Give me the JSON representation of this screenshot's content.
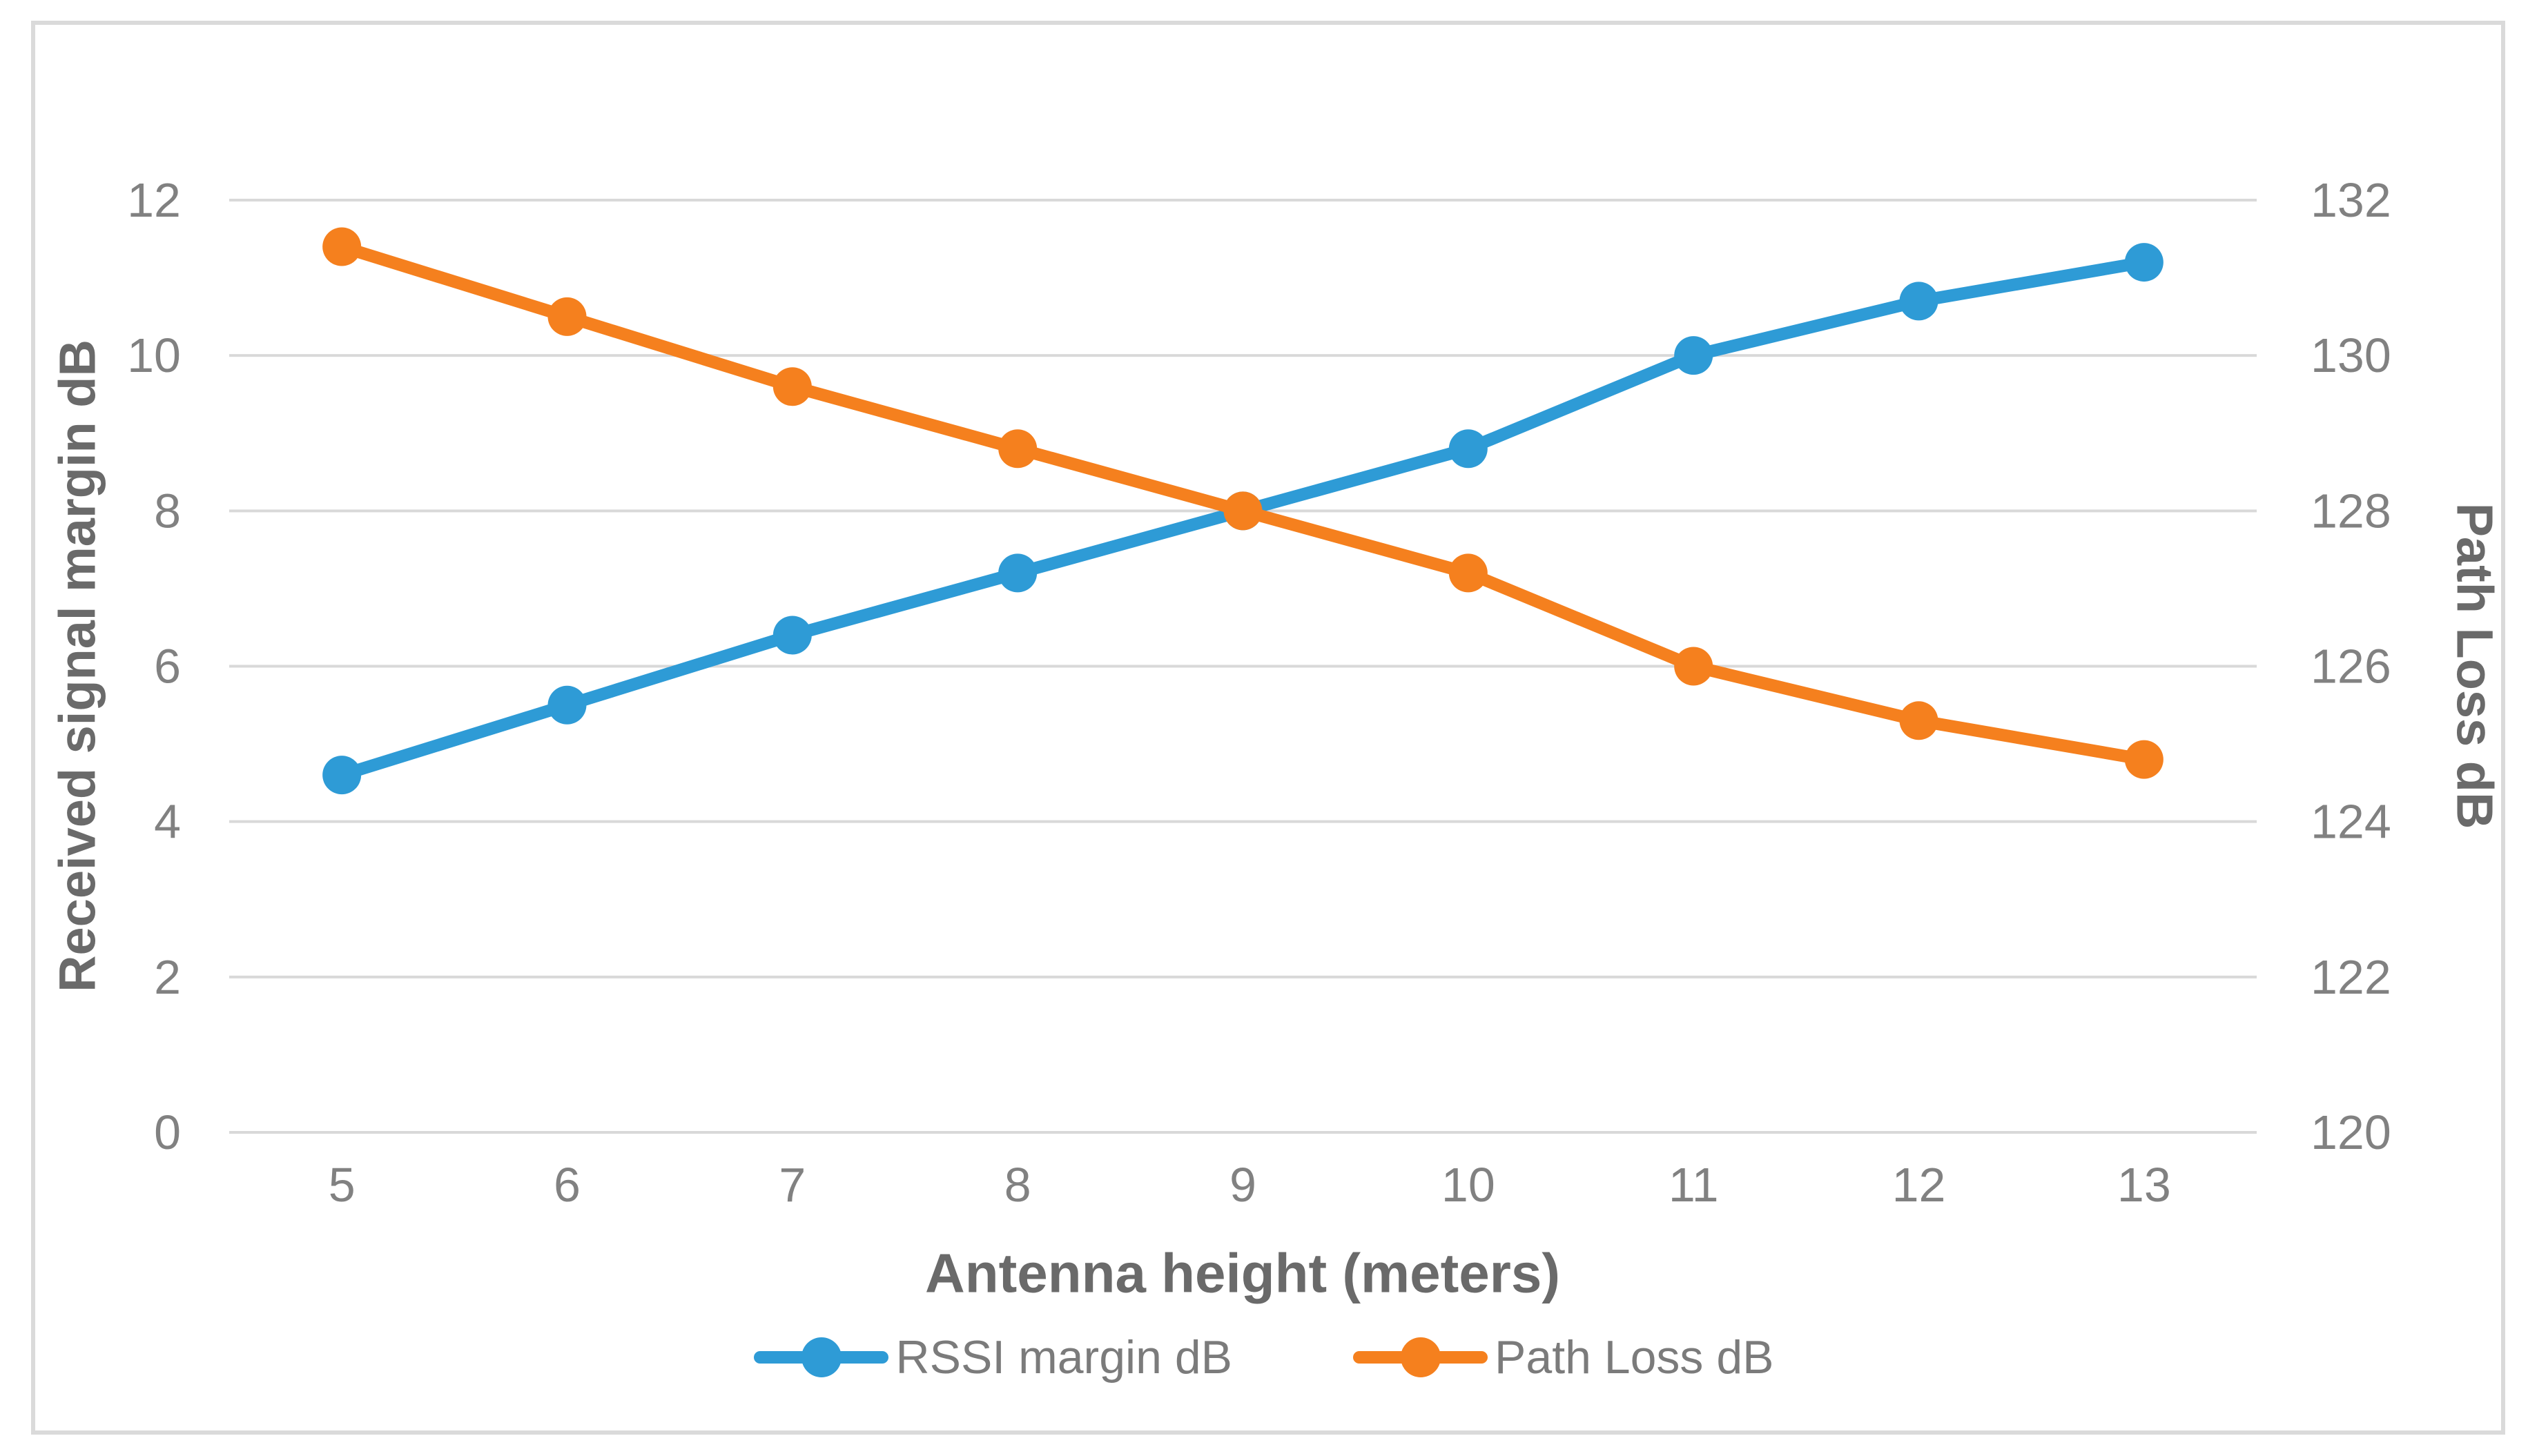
{
  "figure": {
    "background_color": "#FFFFFF",
    "border_color": "#DADADA"
  },
  "chart_data": {
    "type": "line",
    "title": "",
    "xlabel": "Antenna height (meters)",
    "ylabel_left": "Received signal margin dB",
    "ylabel_right": "Path Loss dB",
    "x": [
      5,
      6,
      7,
      8,
      9,
      10,
      11,
      12,
      13
    ],
    "x_tick_labels": [
      "5",
      "6",
      "7",
      "8",
      "9",
      "10",
      "11",
      "12",
      "13"
    ],
    "left_axis": {
      "min": 0,
      "max": 12,
      "step": 2,
      "ticks": [
        0,
        2,
        4,
        6,
        8,
        10,
        12
      ]
    },
    "right_axis": {
      "min": 120,
      "max": 132,
      "step": 2,
      "ticks": [
        120,
        122,
        124,
        126,
        128,
        130,
        132
      ]
    },
    "grid": true,
    "gridline_color": "#D9D9D9",
    "tick_label_color": "#818181",
    "axis_title_color": "#6A6A6A",
    "legend_position": "bottom",
    "series": [
      {
        "name": "RSSI margin dB",
        "axis": "left",
        "color": "#2E9BD6",
        "values": [
          4.6,
          5.5,
          6.4,
          7.2,
          8.0,
          8.8,
          10.0,
          10.7,
          11.2
        ]
      },
      {
        "name": "Path Loss dB",
        "axis": "right",
        "color": "#F5801E",
        "values": [
          131.4,
          130.5,
          129.6,
          128.8,
          128.0,
          127.2,
          126.0,
          125.3,
          124.8
        ]
      }
    ]
  }
}
